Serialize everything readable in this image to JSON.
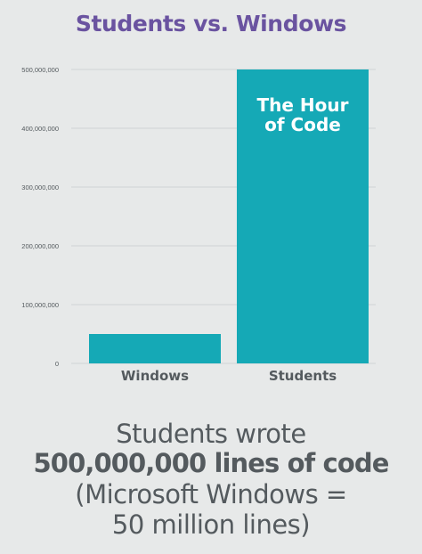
{
  "colors": {
    "background": "#e7e9e9",
    "title": "#6a53a0",
    "bar": "#15a9b6",
    "text": "#545a5e",
    "grid": "#cfd3d5"
  },
  "chart_data": {
    "type": "bar",
    "title": "Students vs. Windows",
    "categories": [
      "Windows",
      "Students"
    ],
    "values": [
      50000000,
      500000000
    ],
    "yticks": [
      "0",
      "100,000,000",
      "200,000,000",
      "300,000,000",
      "400,000,000",
      "500,000,000"
    ],
    "ylim": [
      0,
      500000000
    ],
    "grid": true,
    "annotation": {
      "category": "Students",
      "lines": [
        "The Hour",
        "of Code"
      ]
    }
  },
  "caption": {
    "line1": "Students wrote",
    "line2": "500,000,000 lines of code",
    "line3": "(Microsoft Windows =",
    "line4": "50 million lines)"
  }
}
